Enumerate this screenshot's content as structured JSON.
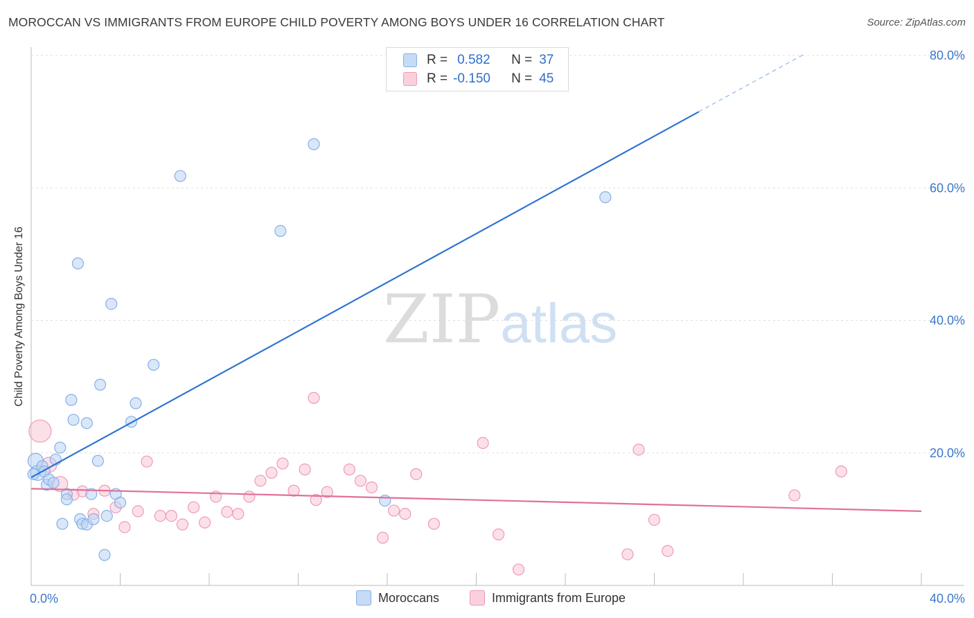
{
  "title": "MOROCCAN VS IMMIGRANTS FROM EUROPE CHILD POVERTY AMONG BOYS UNDER 16 CORRELATION CHART",
  "source": "Source: ZipAtlas.com",
  "watermark": {
    "zip": "ZIP",
    "atlas": "atlas"
  },
  "colors": {
    "blue": "#2f74d0",
    "pink": "#e0709a",
    "blue_fill": "#b9d3f4",
    "pink_fill": "#f9c6d6",
    "axis_label": "#3a78cc"
  },
  "legend": {
    "rows": [
      {
        "r_label": "R =",
        "r_value": "0.582",
        "n_label": "N =",
        "n_value": "37"
      },
      {
        "r_label": "R =",
        "r_value": "-0.150",
        "n_label": "N =",
        "n_value": "45"
      }
    ]
  },
  "bottom_legend": {
    "series1": "Moroccans",
    "series2": "Immigrants from Europe"
  },
  "chart_data": {
    "type": "scatter",
    "title": "MOROCCAN VS IMMIGRANTS FROM EUROPE CHILD POVERTY AMONG BOYS UNDER 16 CORRELATION CHART",
    "xlabel": "",
    "ylabel": "Child Poverty Among Boys Under 16",
    "xlim": [
      0,
      40
    ],
    "ylim": [
      0,
      80
    ],
    "x_tick_labels": [
      "0.0%",
      "40.0%"
    ],
    "y_tick_labels": [
      "20.0%",
      "40.0%",
      "60.0%",
      "80.0%"
    ],
    "y_ticks": [
      20,
      40,
      60,
      80
    ],
    "series": [
      {
        "name": "Moroccans",
        "color": "#2f74d0",
        "R": 0.582,
        "N": 37,
        "trend": {
          "x0": 0.0,
          "y0": 16.3,
          "x1": 30.0,
          "y1": 71.5,
          "dash_to_x": 34.8,
          "dash_to_y": 80.3
        },
        "points": [
          {
            "x": 0.2,
            "y": 18.8,
            "s": 2
          },
          {
            "x": 0.3,
            "y": 17.0,
            "s": 2
          },
          {
            "x": 0.5,
            "y": 18.0,
            "s": 1
          },
          {
            "x": 0.6,
            "y": 17.2,
            "s": 1
          },
          {
            "x": 0.7,
            "y": 15.2,
            "s": 1
          },
          {
            "x": 0.8,
            "y": 16.0,
            "s": 1
          },
          {
            "x": 1.0,
            "y": 15.5,
            "s": 1
          },
          {
            "x": 1.1,
            "y": 19.0,
            "s": 1
          },
          {
            "x": 1.3,
            "y": 20.8,
            "s": 1
          },
          {
            "x": 1.4,
            "y": 9.3,
            "s": 1
          },
          {
            "x": 1.6,
            "y": 13.8,
            "s": 1
          },
          {
            "x": 1.6,
            "y": 13.0,
            "s": 1
          },
          {
            "x": 1.8,
            "y": 28.0,
            "s": 1
          },
          {
            "x": 1.9,
            "y": 25.0,
            "s": 1
          },
          {
            "x": 2.1,
            "y": 48.6,
            "s": 1
          },
          {
            "x": 2.2,
            "y": 10.0,
            "s": 1
          },
          {
            "x": 2.3,
            "y": 9.3,
            "s": 1
          },
          {
            "x": 2.5,
            "y": 24.5,
            "s": 1
          },
          {
            "x": 2.5,
            "y": 9.2,
            "s": 1
          },
          {
            "x": 2.7,
            "y": 13.8,
            "s": 1
          },
          {
            "x": 2.8,
            "y": 10.0,
            "s": 1
          },
          {
            "x": 3.0,
            "y": 18.8,
            "s": 1
          },
          {
            "x": 3.1,
            "y": 30.3,
            "s": 1
          },
          {
            "x": 3.3,
            "y": 4.6,
            "s": 1
          },
          {
            "x": 3.4,
            "y": 10.5,
            "s": 1
          },
          {
            "x": 3.6,
            "y": 42.5,
            "s": 1
          },
          {
            "x": 3.8,
            "y": 13.8,
            "s": 1
          },
          {
            "x": 4.0,
            "y": 12.5,
            "s": 1
          },
          {
            "x": 4.5,
            "y": 24.7,
            "s": 1
          },
          {
            "x": 4.7,
            "y": 27.5,
            "s": 1
          },
          {
            "x": 5.5,
            "y": 33.3,
            "s": 1
          },
          {
            "x": 6.7,
            "y": 61.8,
            "s": 1
          },
          {
            "x": 11.2,
            "y": 53.5,
            "s": 1
          },
          {
            "x": 12.7,
            "y": 66.6,
            "s": 1
          },
          {
            "x": 15.9,
            "y": 12.8,
            "s": 1
          },
          {
            "x": 25.8,
            "y": 58.6,
            "s": 1
          },
          {
            "x": 0.1,
            "y": 16.8,
            "s": 1
          }
        ]
      },
      {
        "name": "Immigrants from Europe",
        "color": "#e0709a",
        "R": -0.15,
        "N": 45,
        "trend": {
          "x0": 0.0,
          "y0": 14.6,
          "x1": 40.0,
          "y1": 11.2
        },
        "points": [
          {
            "x": 0.4,
            "y": 23.3,
            "s": 3
          },
          {
            "x": 0.8,
            "y": 18.2,
            "s": 2
          },
          {
            "x": 1.3,
            "y": 15.3,
            "s": 2
          },
          {
            "x": 2.3,
            "y": 14.2,
            "s": 1
          },
          {
            "x": 2.8,
            "y": 10.8,
            "s": 1
          },
          {
            "x": 3.3,
            "y": 14.3,
            "s": 1
          },
          {
            "x": 3.8,
            "y": 11.8,
            "s": 1
          },
          {
            "x": 4.2,
            "y": 8.8,
            "s": 1
          },
          {
            "x": 4.8,
            "y": 11.2,
            "s": 1
          },
          {
            "x": 5.2,
            "y": 18.7,
            "s": 1
          },
          {
            "x": 5.8,
            "y": 10.5,
            "s": 1
          },
          {
            "x": 6.3,
            "y": 10.5,
            "s": 1
          },
          {
            "x": 6.8,
            "y": 9.2,
            "s": 1
          },
          {
            "x": 7.3,
            "y": 11.8,
            "s": 1
          },
          {
            "x": 7.8,
            "y": 9.5,
            "s": 1
          },
          {
            "x": 8.3,
            "y": 13.4,
            "s": 1
          },
          {
            "x": 8.8,
            "y": 11.1,
            "s": 1
          },
          {
            "x": 9.3,
            "y": 10.8,
            "s": 1
          },
          {
            "x": 9.8,
            "y": 13.4,
            "s": 1
          },
          {
            "x": 10.3,
            "y": 15.8,
            "s": 1
          },
          {
            "x": 10.8,
            "y": 17.0,
            "s": 1
          },
          {
            "x": 11.3,
            "y": 18.4,
            "s": 1
          },
          {
            "x": 11.8,
            "y": 14.3,
            "s": 1
          },
          {
            "x": 12.3,
            "y": 17.5,
            "s": 1
          },
          {
            "x": 12.8,
            "y": 12.9,
            "s": 1
          },
          {
            "x": 13.3,
            "y": 14.1,
            "s": 1
          },
          {
            "x": 12.7,
            "y": 28.3,
            "s": 1
          },
          {
            "x": 14.3,
            "y": 17.5,
            "s": 1
          },
          {
            "x": 14.8,
            "y": 15.8,
            "s": 1
          },
          {
            "x": 15.3,
            "y": 14.8,
            "s": 1
          },
          {
            "x": 15.8,
            "y": 7.2,
            "s": 1
          },
          {
            "x": 16.3,
            "y": 11.3,
            "s": 1
          },
          {
            "x": 16.8,
            "y": 10.8,
            "s": 1
          },
          {
            "x": 17.3,
            "y": 16.8,
            "s": 1
          },
          {
            "x": 18.1,
            "y": 9.3,
            "s": 1
          },
          {
            "x": 20.3,
            "y": 21.5,
            "s": 1
          },
          {
            "x": 21.0,
            "y": 7.7,
            "s": 1
          },
          {
            "x": 21.9,
            "y": 2.4,
            "s": 1
          },
          {
            "x": 26.8,
            "y": 4.7,
            "s": 1
          },
          {
            "x": 27.3,
            "y": 20.5,
            "s": 1
          },
          {
            "x": 28.0,
            "y": 9.9,
            "s": 1
          },
          {
            "x": 28.6,
            "y": 5.2,
            "s": 1
          },
          {
            "x": 34.3,
            "y": 13.6,
            "s": 1
          },
          {
            "x": 36.4,
            "y": 17.2,
            "s": 1
          },
          {
            "x": 1.9,
            "y": 13.7,
            "s": 1
          }
        ]
      }
    ]
  }
}
